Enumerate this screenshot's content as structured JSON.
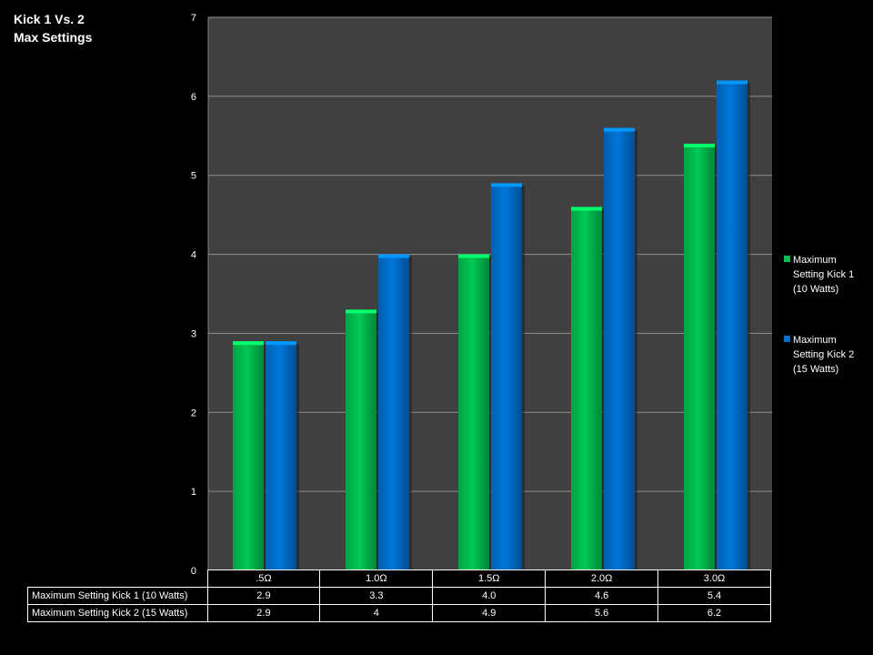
{
  "chart_data": {
    "type": "bar",
    "title": [
      "Kick 1 Vs. 2",
      "Max Settings"
    ],
    "categories": [
      ".5Ω",
      "1.0Ω",
      "1.5Ω",
      "2.0Ω",
      "3.0Ω"
    ],
    "series": [
      {
        "name": "Maximum Setting Kick 1 (10 Watts)",
        "legend_lines": [
          "Maximum",
          "Setting Kick 1",
          "(10 Watts)"
        ],
        "color": "#00c050",
        "values": [
          2.9,
          3.3,
          4.0,
          4.6,
          5.4
        ],
        "labels": [
          "2.9",
          "3.3",
          "4.0",
          "4.6",
          "5.4"
        ]
      },
      {
        "name": "Maximum Setting Kick 2 (15 Watts)",
        "legend_lines": [
          "Maximum",
          "Setting Kick 2",
          "(15 Watts)"
        ],
        "color": "#0070d0",
        "values": [
          2.9,
          4,
          4.9,
          5.6,
          6.2
        ],
        "labels": [
          "2.9",
          "4",
          "4.9",
          "5.6",
          "6.2"
        ]
      }
    ],
    "ylim": [
      0,
      7
    ],
    "yticks": [
      0,
      1,
      2,
      3,
      4,
      5,
      6,
      7
    ],
    "grid": true,
    "legend_position": "right",
    "plot_background": "#404040",
    "data_table": true
  }
}
